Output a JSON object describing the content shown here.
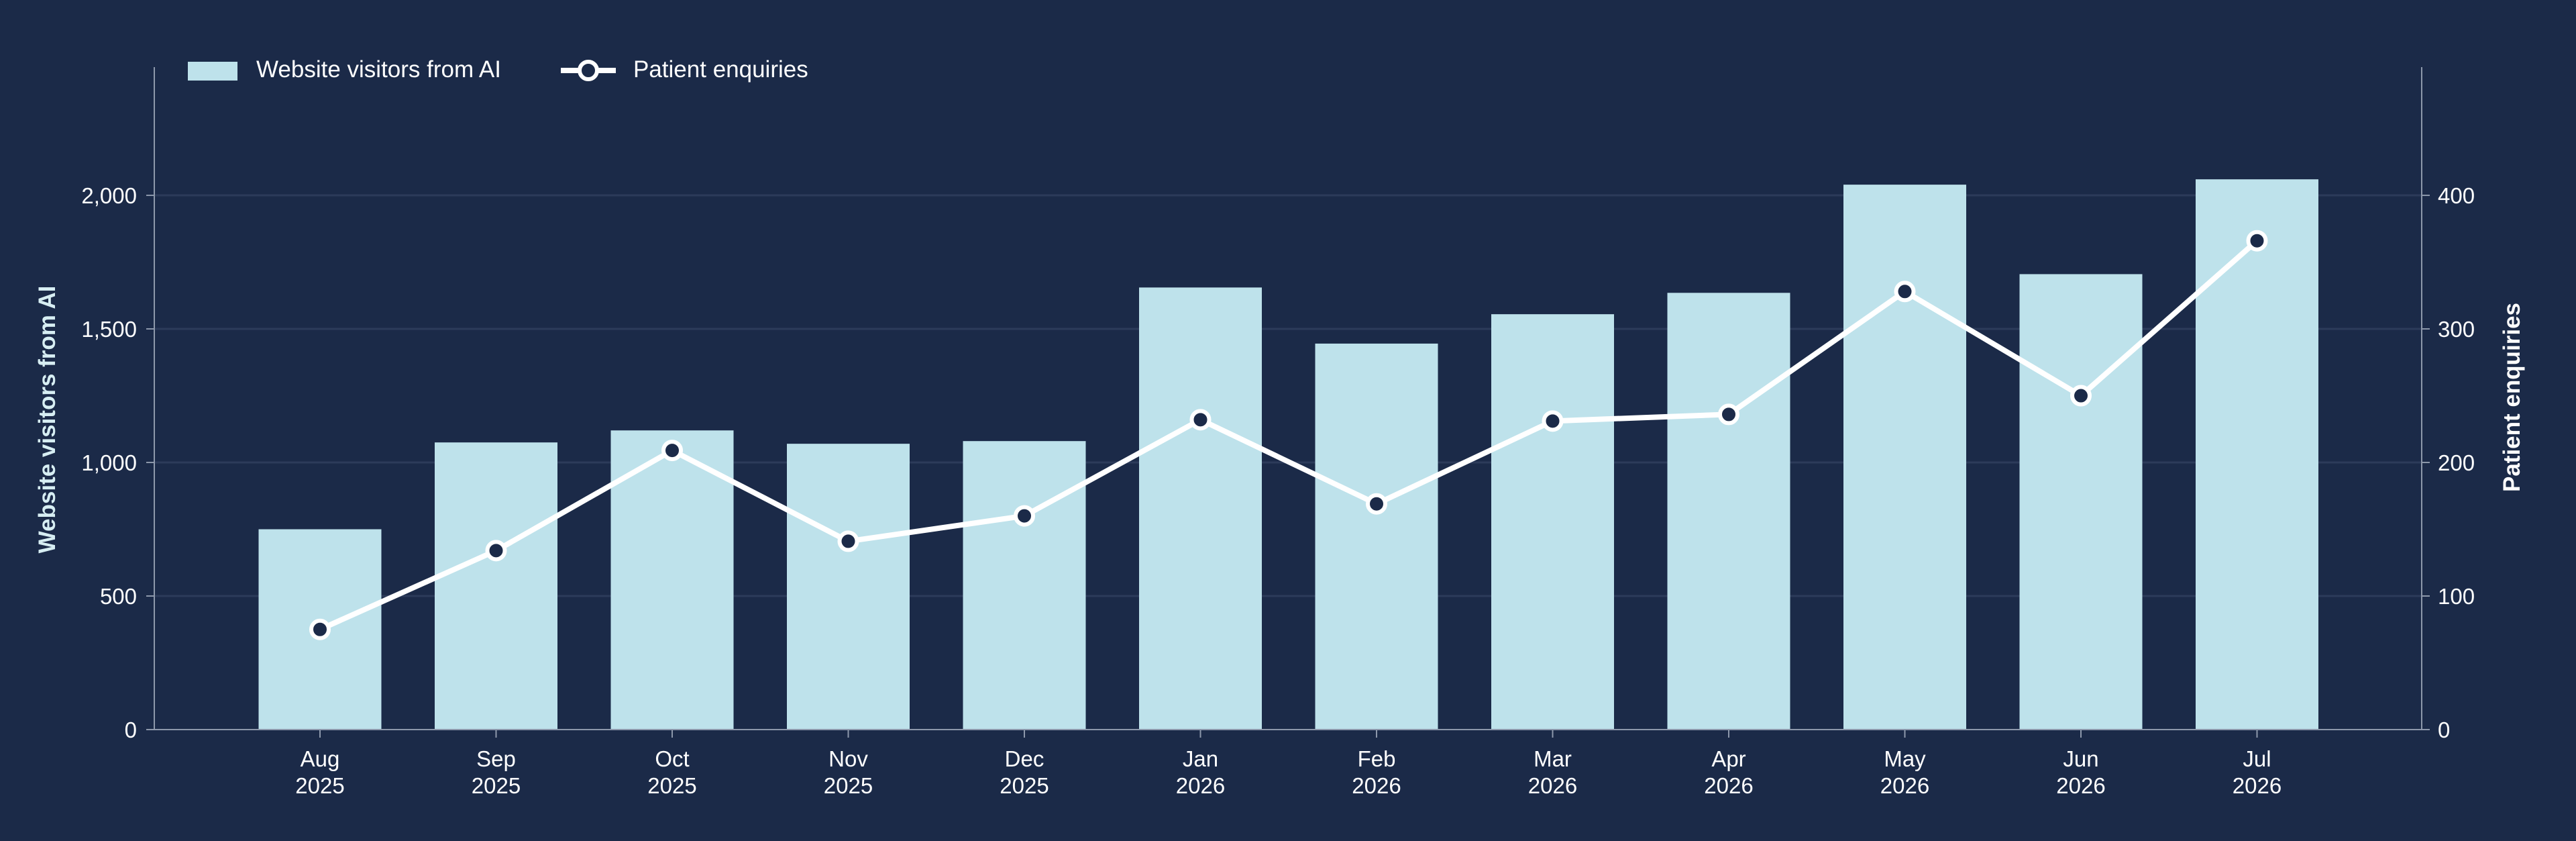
{
  "colors": {
    "background": "#1b2a48",
    "bars": "#bee2eb",
    "line": "#ffffff",
    "marker_fill": "#1b2a48",
    "text": "#ffffff",
    "axis_title": "#d7eef3",
    "axis": "#8d98ab",
    "grid": "#2c3b5a"
  },
  "chart_data": {
    "type": "bar",
    "title": "",
    "categories": [
      "Aug\n2025",
      "Sep\n2025",
      "Oct\n2025",
      "Nov\n2025",
      "Dec\n2025",
      "Jan\n2026",
      "Feb\n2026",
      "Mar\n2026",
      "Apr\n2026",
      "May\n2026",
      "Jun\n2026",
      "Jul\n2026"
    ],
    "ylabel": "Website visitors from AI",
    "y2label": "Patient enquiries",
    "ylim": [
      0,
      2480
    ],
    "y2lim": [
      0,
      496
    ],
    "yticks": [
      0,
      500,
      1000,
      1500,
      2000
    ],
    "ytick_labels": [
      "0",
      "500",
      "1,000",
      "1,500",
      "2,000"
    ],
    "y2ticks": [
      0,
      100,
      200,
      300,
      400
    ],
    "y2tick_labels": [
      "0",
      "100",
      "200",
      "300",
      "400"
    ],
    "grid": true,
    "legend_position": "top-left",
    "series": [
      {
        "name": "Website visitors from AI",
        "type": "bar",
        "axis": "left",
        "values": [
          750,
          1075,
          1120,
          1070,
          1080,
          1655,
          1445,
          1555,
          1635,
          2040,
          1705,
          2060
        ]
      },
      {
        "name": "Patient enquiries",
        "type": "line",
        "axis": "right",
        "marker": "circle",
        "values": [
          75,
          134,
          209,
          141,
          160,
          232,
          169,
          231,
          236,
          328,
          250,
          366
        ]
      }
    ]
  }
}
